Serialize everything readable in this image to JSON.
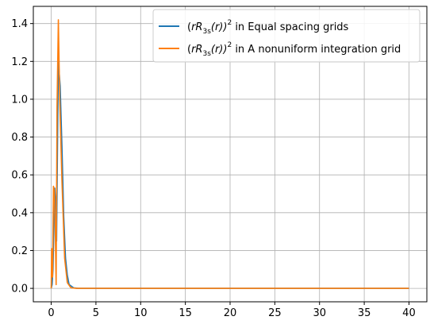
{
  "chart_data": {
    "type": "line",
    "title": "",
    "xlabel": "",
    "ylabel": "",
    "xlim": [
      -2.0,
      42.0
    ],
    "ylim": [
      -0.071,
      1.491
    ],
    "grid": true,
    "legend_position": "top-right",
    "x_ticks": [
      0,
      5,
      10,
      15,
      20,
      25,
      30,
      35,
      40
    ],
    "y_ticks": [
      0.0,
      0.2,
      0.4,
      0.6,
      0.8,
      1.0,
      1.2,
      1.4
    ],
    "x_tick_labels": [
      "0",
      "5",
      "10",
      "15",
      "20",
      "25",
      "30",
      "35",
      "40"
    ],
    "y_tick_labels": [
      "0.0",
      "0.2",
      "0.4",
      "0.6",
      "0.8",
      "1.0",
      "1.2",
      "1.4"
    ],
    "series": [
      {
        "name": "(rR3s(r))^2 in Equal spacing grids",
        "legend_base": "(",
        "legend_r": "rR",
        "legend_sub": "3s",
        "legend_mid": "(r))",
        "legend_sup": "2",
        "legend_tail": " in Equal spacing grids",
        "color": "#1f77b4",
        "x": [
          0,
          0.1,
          0.2,
          0.3,
          0.4,
          0.5,
          0.6,
          0.7,
          0.8,
          1.0,
          1.2,
          1.4,
          1.6,
          1.8,
          2.0,
          2.5,
          3.0,
          4.0,
          6.0,
          10.0,
          20.0,
          30.0,
          40.0
        ],
        "y": [
          0.0,
          0.02,
          0.1,
          0.33,
          0.53,
          0.45,
          0.25,
          0.75,
          1.2,
          1.07,
          0.75,
          0.38,
          0.16,
          0.07,
          0.02,
          0.003,
          0.0,
          0.0,
          0.0,
          0.0,
          0.0,
          0.0,
          0.0
        ]
      },
      {
        "name": "(rR3s(r))^2 in A nonuniform integration grid",
        "legend_base": "(",
        "legend_r": "rR",
        "legend_sub": "3s",
        "legend_mid": "(r))",
        "legend_sup": "2",
        "legend_tail": " in A nonuniform integration grid",
        "color": "#ff7f0e",
        "x": [
          0,
          0.05,
          0.15,
          0.25,
          0.35,
          0.45,
          0.55,
          0.65,
          0.8,
          0.95,
          1.2,
          1.5,
          1.8,
          2.2,
          2.8,
          3.5,
          5.0,
          8.0,
          15.0,
          25.0,
          40.0
        ],
        "y": [
          0.0,
          0.21,
          0.06,
          0.54,
          0.52,
          0.32,
          0.02,
          0.96,
          1.42,
          1.0,
          0.57,
          0.16,
          0.03,
          0.003,
          0.0,
          0.0,
          0.0,
          0.0,
          0.0,
          0.0,
          0.0
        ]
      }
    ]
  }
}
